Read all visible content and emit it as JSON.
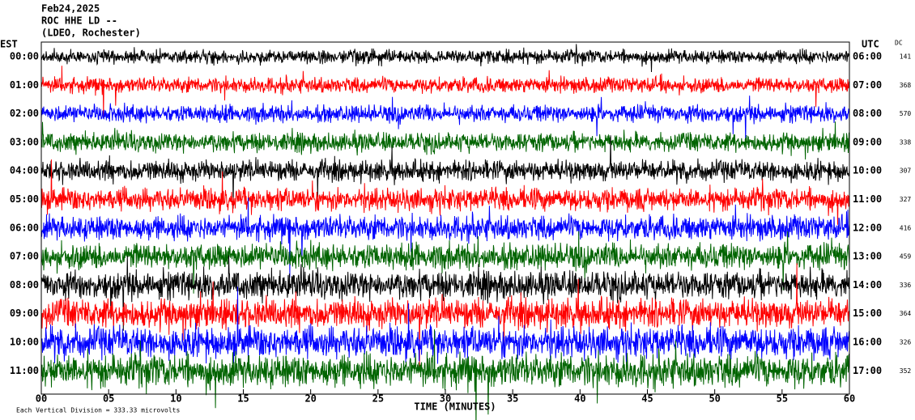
{
  "chart_data": {
    "type": "helicorder",
    "title_lines": [
      "Feb24,2025",
      "ROC HHE LD --",
      "(LDEO, Rochester)"
    ],
    "left_axis_label": "EST",
    "right_axis_label": "UTC",
    "dc_label": "DC",
    "categories": [
      "00:00",
      "01:00",
      "02:00",
      "03:00",
      "04:00",
      "05:00",
      "06:00",
      "07:00",
      "08:00",
      "09:00",
      "10:00",
      "11:00"
    ],
    "utc_labels": [
      "06:00",
      "07:00",
      "08:00",
      "09:00",
      "10:00",
      "11:00",
      "12:00",
      "13:00",
      "14:00",
      "15:00",
      "16:00",
      "17:00"
    ],
    "dc_values": [
      141,
      368,
      570,
      338,
      307,
      327,
      416,
      459,
      336,
      364,
      326,
      352
    ],
    "colors": [
      "#000000",
      "#ff0000",
      "#0000ff",
      "#006400"
    ],
    "xlim": [
      0,
      60
    ],
    "xticks": [
      {
        "value": 0,
        "label": "00"
      },
      {
        "value": 5,
        "label": "05"
      },
      10,
      15,
      20,
      25,
      30,
      35,
      40,
      45,
      50,
      55,
      60
    ],
    "x_label": "TIME (MINUTES)",
    "footer": "Each Vertical Division =  333.33 microvolts"
  }
}
